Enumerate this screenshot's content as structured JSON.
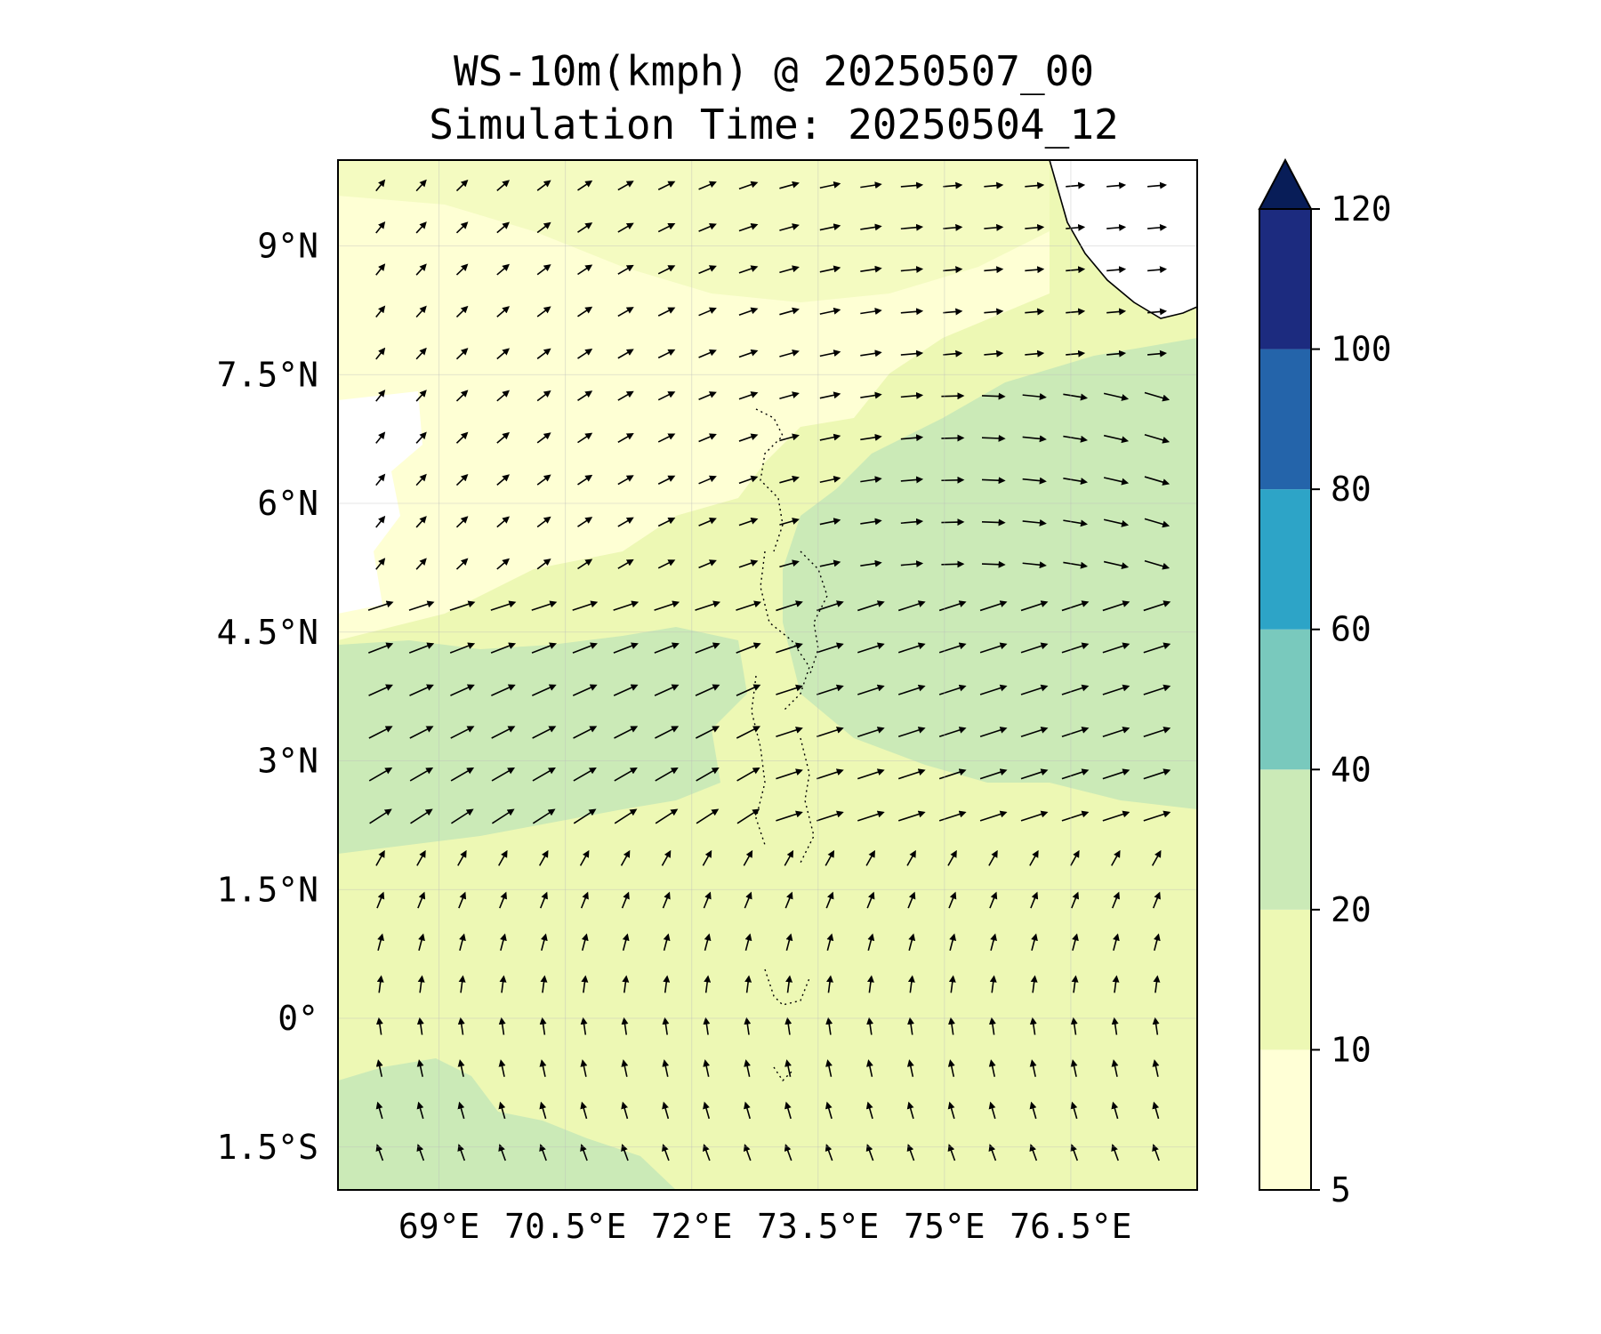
{
  "title": {
    "line1": "WS-10m(kmph) @ 20250507_00",
    "line2": "Simulation Time: 20250504_12"
  },
  "map": {
    "lon_range": [
      67.8,
      78.0
    ],
    "lat_range": [
      -2.0,
      10.0
    ],
    "lon_ticks": [
      69,
      70.5,
      72,
      73.5,
      75,
      76.5
    ],
    "lon_tick_labels": [
      "69°E",
      "70.5°E",
      "72°E",
      "73.5°E",
      "75°E",
      "76.5°E"
    ],
    "lat_ticks": [
      -1.5,
      0,
      1.5,
      3,
      4.5,
      6,
      7.5,
      9
    ],
    "lat_tick_labels": [
      "1.5°S",
      "0°",
      "1.5°N",
      "3°N",
      "4.5°N",
      "6°N",
      "7.5°N",
      "9°N"
    ],
    "gridlines": true,
    "features": [
      "coastline-india-southwest",
      "maldives-atolls-dotted"
    ]
  },
  "wind_field": {
    "regions_kmph": [
      {
        "area": "north of 5.5°N, west of 73°E",
        "speed_band": "5-10"
      },
      {
        "area": "west of 68.7°E, 5.5-7.5°N",
        "speed_band": "<5"
      },
      {
        "area": "1.9-4.5°N, west of 72.5°E",
        "speed_band": "20-40"
      },
      {
        "area": "2.5-7.5°N, east of 73.5°E",
        "speed_band": "20-40"
      },
      {
        "area": "south of 1.5°N",
        "speed_band": "10-20"
      },
      {
        "area": "south of -0.5°, west of 69.5°E",
        "speed_band": "20-40"
      }
    ],
    "direction_summary": "NW-SE flow in north, westerlies to ENE in middle band, southerlies turning NNW in south"
  },
  "colorbar": {
    "levels": [
      5,
      10,
      20,
      40,
      60,
      80,
      100,
      120
    ],
    "tick_labels": [
      "5",
      "10",
      "20",
      "40",
      "60",
      "80",
      "100",
      "120"
    ],
    "colors": [
      "#ffffd6",
      "#edf8b4",
      "#cbeab7",
      "#79c9bd",
      "#2da4c7",
      "#2464aa",
      "#1c2b7f",
      "#081d58"
    ],
    "extend": "max"
  }
}
